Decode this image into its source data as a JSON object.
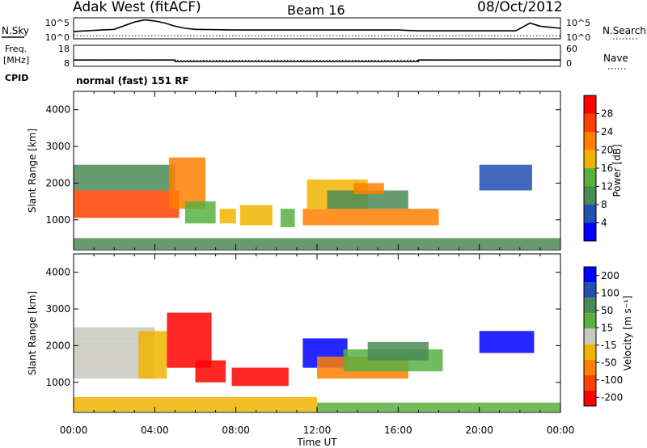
{
  "header": {
    "station": "Adak West (fitACF)",
    "beam": "Beam 16",
    "date": "08/Oct/2012"
  },
  "chart_data": [
    {
      "type": "line",
      "panel": "noise",
      "left_label": "N.Sky",
      "right_label": "N.Search",
      "yticks_left": [
        "10^5",
        "10^0"
      ],
      "yticks_right": [
        "10^5",
        "10^0"
      ],
      "series": [
        {
          "name": "N.Sky",
          "style": "solid",
          "x": [
            0,
            1,
            2,
            3,
            3.5,
            4,
            4.5,
            5,
            5.5,
            6,
            8,
            10,
            12,
            14,
            16,
            17,
            18,
            20,
            21.8,
            22.5,
            23,
            24
          ],
          "y": [
            0.35,
            0.4,
            0.45,
            0.8,
            0.9,
            0.85,
            0.75,
            0.6,
            0.5,
            0.45,
            0.42,
            0.42,
            0.42,
            0.42,
            0.42,
            0.38,
            0.38,
            0.38,
            0.38,
            0.75,
            0.6,
            0.5
          ]
        },
        {
          "name": "N.Search",
          "style": "dotted",
          "x": [
            0,
            24
          ],
          "y": [
            0.15,
            0.15
          ]
        }
      ]
    },
    {
      "type": "line",
      "panel": "frequency",
      "left_label_top": "Freq.",
      "left_label_bottom": "[MHz]",
      "right_label": "Nave",
      "cpid_label": "CPID",
      "cpid_text": "normal (fast) 151 RF",
      "yticks_left": [
        "18",
        "8"
      ],
      "yticks_right": [
        "60",
        "0"
      ],
      "series": [
        {
          "name": "Freq.",
          "style": "solid",
          "x": [
            0,
            5,
            5,
            17,
            17,
            24
          ],
          "y": [
            11,
            11,
            10.3,
            10.3,
            11,
            11
          ]
        },
        {
          "name": "Nave",
          "style": "dotted",
          "x": [
            0,
            24
          ],
          "y": [
            17,
            17
          ]
        }
      ]
    },
    {
      "type": "heatmap",
      "panel": "power",
      "ylabel": "Slant Range [km]",
      "yticks": [
        "1000",
        "2000",
        "3000",
        "4000"
      ],
      "ylim": [
        180,
        4500
      ],
      "xlim": [
        0,
        24
      ],
      "colorbar_label": "Power [dB]",
      "colorbar_ticks": [
        "4",
        "8",
        "12",
        "16",
        "20",
        "24",
        "28"
      ],
      "colors": [
        "#0000ff",
        "#2050b0",
        "#4a8a56",
        "#58b040",
        "#f0b400",
        "#ff8000",
        "#ff4000",
        "#ff0000"
      ],
      "regions": [
        {
          "x0": 0.0,
          "x1": 5.2,
          "r0": 1050,
          "r1": 1800,
          "level": 6
        },
        {
          "x0": 0.0,
          "x1": 5.0,
          "r0": 1800,
          "r1": 2500,
          "level": 2
        },
        {
          "x0": 4.7,
          "x1": 6.5,
          "r0": 1300,
          "r1": 2700,
          "level": 5
        },
        {
          "x0": 5.5,
          "x1": 7.0,
          "r0": 900,
          "r1": 1500,
          "level": 3
        },
        {
          "x0": 7.2,
          "x1": 8.0,
          "r0": 900,
          "r1": 1300,
          "level": 4
        },
        {
          "x0": 8.2,
          "x1": 9.8,
          "r0": 850,
          "r1": 1400,
          "level": 4
        },
        {
          "x0": 10.2,
          "x1": 10.9,
          "r0": 800,
          "r1": 1300,
          "level": 3
        },
        {
          "x0": 11.3,
          "x1": 18.0,
          "r0": 850,
          "r1": 1300,
          "level": 5
        },
        {
          "x0": 11.5,
          "x1": 14.5,
          "r0": 1300,
          "r1": 2100,
          "level": 4
        },
        {
          "x0": 12.5,
          "x1": 16.5,
          "r0": 1300,
          "r1": 1800,
          "level": 2
        },
        {
          "x0": 13.8,
          "x1": 15.3,
          "r0": 1700,
          "r1": 2000,
          "level": 5
        },
        {
          "x0": 20.0,
          "x1": 22.6,
          "r0": 1800,
          "r1": 2500,
          "level": 1
        },
        {
          "x0": 0.0,
          "x1": 24.0,
          "r0": 200,
          "r1": 500,
          "level": 2
        }
      ]
    },
    {
      "type": "heatmap",
      "panel": "velocity",
      "ylabel": "Slant Range [km]",
      "xlabel": "Time UT",
      "xticks": [
        "00:00",
        "04:00",
        "08:00",
        "12:00",
        "16:00",
        "20:00",
        "00:00"
      ],
      "yticks": [
        "1000",
        "2000",
        "3000",
        "4000"
      ],
      "ylim": [
        180,
        4500
      ],
      "xlim": [
        0,
        24
      ],
      "colorbar_label": "Velocity [m s⁻¹]",
      "colorbar_ticks": [
        "200",
        "100",
        "50",
        "15",
        "-15",
        "-50",
        "-100",
        "-200"
      ],
      "colors": [
        "#0000ff",
        "#2050b0",
        "#4a8a56",
        "#58b040",
        "#c8c8c0",
        "#f0b400",
        "#ff8000",
        "#ff4000",
        "#ff0000"
      ],
      "regions": [
        {
          "x0": 0.0,
          "x1": 4.0,
          "r0": 1100,
          "r1": 2100,
          "level": 4
        },
        {
          "x0": 0.0,
          "x1": 4.0,
          "r0": 2100,
          "r1": 2500,
          "level": 4
        },
        {
          "x0": 3.2,
          "x1": 4.6,
          "r0": 1100,
          "r1": 2400,
          "level": 5
        },
        {
          "x0": 4.6,
          "x1": 6.8,
          "r0": 1400,
          "r1": 2900,
          "level": 8
        },
        {
          "x0": 6.0,
          "x1": 7.5,
          "r0": 1000,
          "r1": 1600,
          "level": 8
        },
        {
          "x0": 7.8,
          "x1": 10.6,
          "r0": 900,
          "r1": 1400,
          "level": 8
        },
        {
          "x0": 11.3,
          "x1": 13.5,
          "r0": 1400,
          "r1": 2200,
          "level": 0
        },
        {
          "x0": 12.0,
          "x1": 16.5,
          "r0": 1100,
          "r1": 1700,
          "level": 6
        },
        {
          "x0": 13.3,
          "x1": 18.2,
          "r0": 1300,
          "r1": 1900,
          "level": 3
        },
        {
          "x0": 14.5,
          "x1": 17.5,
          "r0": 1600,
          "r1": 2100,
          "level": 2
        },
        {
          "x0": 20.0,
          "x1": 22.7,
          "r0": 1800,
          "r1": 2400,
          "level": 0
        },
        {
          "x0": 0.0,
          "x1": 12.0,
          "r0": 200,
          "r1": 600,
          "level": 5
        },
        {
          "x0": 12.0,
          "x1": 24.0,
          "r0": 200,
          "r1": 450,
          "level": 3
        }
      ]
    }
  ]
}
